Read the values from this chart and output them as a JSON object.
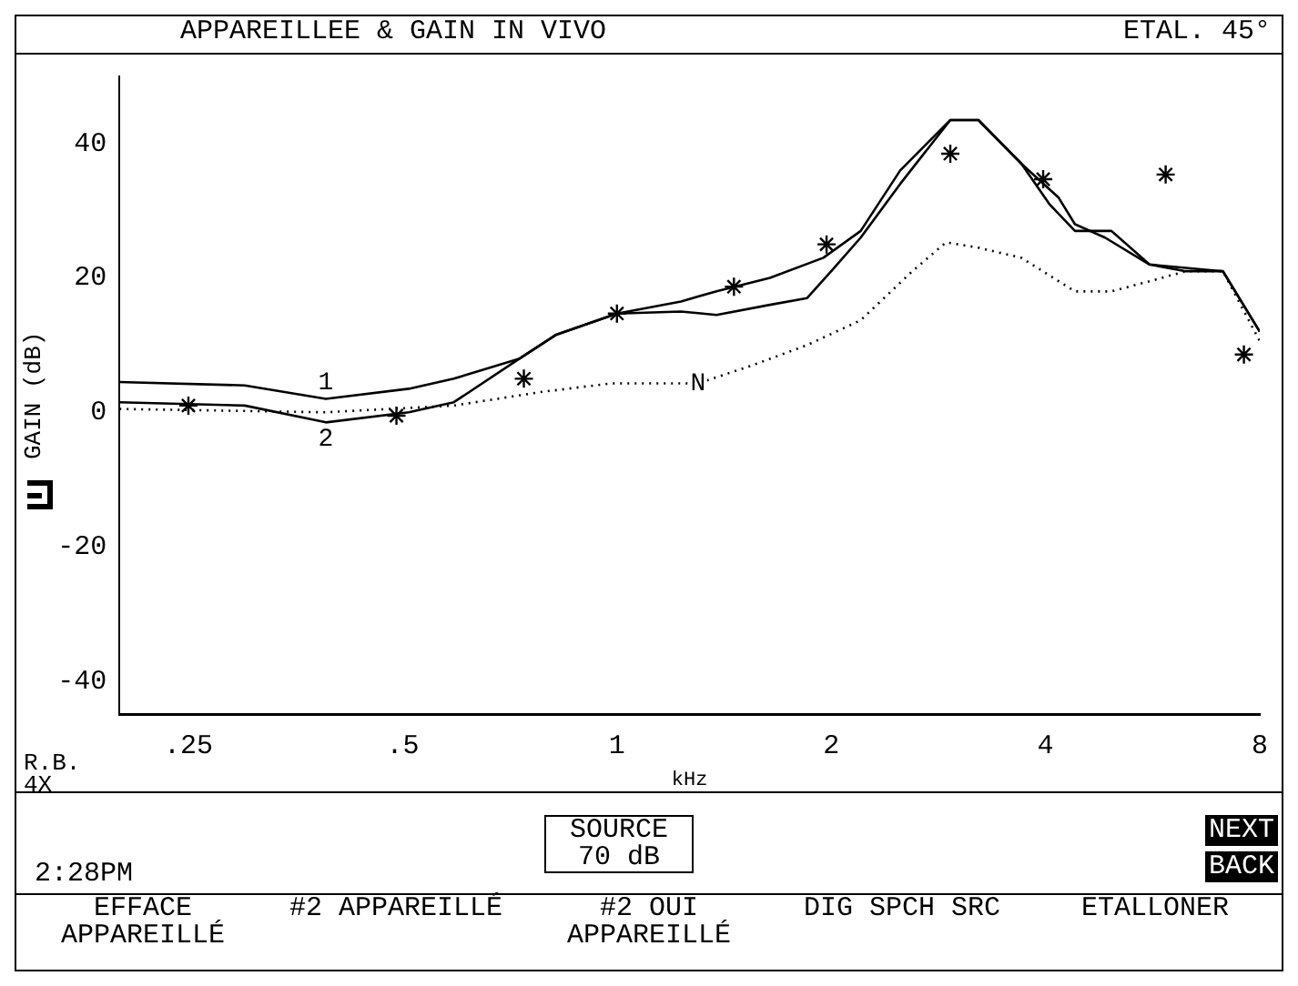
{
  "chart_data": {
    "type": "line",
    "title": "APPAREILLEE & GAIN IN VIVO",
    "ylabel": "GAIN (dB)",
    "xlabel": "kHz",
    "log": "x",
    "xlim": [
      0.2,
      8
    ],
    "xticks": [
      {
        "value": 0.25,
        "label": ".25"
      },
      {
        "value": 0.5,
        "label": ".5"
      },
      1,
      2,
      4,
      8
    ],
    "ylim": [
      -45,
      50
    ],
    "yticks": [
      40,
      20,
      0,
      -20,
      -40
    ],
    "grid": false,
    "legend": false,
    "series": [
      {
        "name": "1",
        "type": "line",
        "color": "#000000",
        "line_style": "solid",
        "marker": "none",
        "x": [
          0.2,
          0.3,
          0.39,
          0.51,
          0.59,
          0.73,
          0.82,
          1.0,
          1.23,
          1.38,
          1.64,
          1.95,
          2.2,
          2.5,
          2.94,
          3.22,
          3.7,
          4.17,
          4.4,
          4.85,
          5.6,
          6.3,
          7.1,
          8
        ],
        "values": [
          4.5,
          4,
          2,
          3.5,
          5,
          8,
          11.5,
          14.7,
          16.5,
          18,
          20,
          23,
          27,
          36,
          43.5,
          43.5,
          37,
          32,
          28,
          26,
          22,
          21,
          21,
          12
        ]
      },
      {
        "name": "2",
        "type": "line",
        "color": "#000000",
        "line_style": "solid",
        "marker": "none",
        "x": [
          0.2,
          0.3,
          0.39,
          0.51,
          0.59,
          0.73,
          0.82,
          1.0,
          1.23,
          1.38,
          1.64,
          1.85,
          2.0,
          2.2,
          2.5,
          2.94,
          3.22,
          3.7,
          4.05,
          4.4,
          4.95,
          5.6,
          7.1,
          8
        ],
        "values": [
          1.5,
          1,
          -1.5,
          0,
          1.5,
          8,
          11.5,
          14.7,
          15,
          14.5,
          16,
          17,
          21,
          26,
          34,
          43.5,
          43.5,
          37,
          31,
          27,
          27,
          22,
          21,
          12
        ]
      },
      {
        "name": "N",
        "type": "line",
        "color": "#000000",
        "line_style": "dotted",
        "marker": "none",
        "x": [
          0.2,
          0.39,
          0.59,
          0.78,
          0.98,
          1.3,
          1.55,
          1.85,
          2.2,
          2.6,
          2.9,
          3.22,
          3.7,
          4.4,
          4.95,
          5.6,
          6.3,
          7.1,
          8
        ],
        "values": [
          0.5,
          0,
          1,
          3,
          4.3,
          4.3,
          7,
          10,
          13.7,
          21,
          25.3,
          24.5,
          23,
          18,
          18,
          19.5,
          21,
          21,
          10.6
        ]
      },
      {
        "type": "scatter",
        "color": "#000000",
        "marker": "cross",
        "x": [
          0.25,
          0.49,
          0.74,
          1.0,
          1.46,
          1.97,
          2.94,
          3.97,
          5.9,
          7.6
        ],
        "values": [
          1,
          -0.5,
          5,
          14.7,
          18.7,
          25,
          38.5,
          34.7,
          35.4,
          8.6
        ]
      }
    ],
    "annotations": [
      "ETAL. 45°",
      "R.B. 4X",
      "2:28PM",
      "SOURCE 70 dB",
      "NEXT",
      "BACK",
      "EFFACE APPAREILLÉ",
      "#2 APPAREILLÉ",
      "#2 OUI APPAREILLÉ",
      "DIG SPCH SRC",
      "ETALLONER"
    ]
  }
}
